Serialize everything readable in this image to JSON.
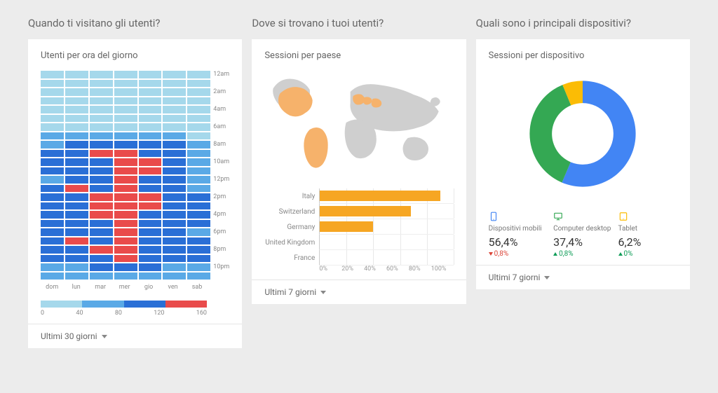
{
  "palette": {
    "heatmap_scale": [
      "#a5d8eb",
      "#5aa9e6",
      "#2a6fd6",
      "#e94b4b"
    ],
    "bar_color": "#f6a623",
    "map_highlight": "#f6b26b",
    "map_neutral": "#cfcfcf",
    "donut_colors": {
      "mobile": "#4285f4",
      "desktop": "#34a853",
      "tablet": "#fbbc05"
    },
    "grid_color": "#e8e8e8",
    "text_muted": "#888888"
  },
  "cards": {
    "heatmap": {
      "section_title": "Quando ti visitano gli utenti?",
      "chart_title": "Utenti per ora del giorno",
      "days": [
        "dom",
        "lun",
        "mar",
        "mer",
        "gio",
        "ven",
        "sab"
      ],
      "hour_labels": [
        "12am",
        "2am",
        "4am",
        "6am",
        "8am",
        "10am",
        "12pm",
        "2pm",
        "4pm",
        "6pm",
        "8pm",
        "10pm"
      ],
      "grid": [
        [
          0,
          0,
          0,
          0,
          0,
          0,
          0
        ],
        [
          0,
          0,
          0,
          0,
          0,
          0,
          0
        ],
        [
          0,
          0,
          0,
          0,
          0,
          0,
          0
        ],
        [
          0,
          0,
          0,
          0,
          0,
          0,
          0
        ],
        [
          0,
          0,
          0,
          0,
          0,
          0,
          0
        ],
        [
          0,
          0,
          0,
          0,
          0,
          0,
          0
        ],
        [
          0,
          0,
          0,
          0,
          0,
          0,
          0
        ],
        [
          1,
          1,
          1,
          1,
          1,
          1,
          0
        ],
        [
          1,
          2,
          2,
          2,
          2,
          2,
          1
        ],
        [
          2,
          2,
          3,
          3,
          2,
          2,
          1
        ],
        [
          2,
          2,
          2,
          3,
          3,
          2,
          1
        ],
        [
          2,
          2,
          2,
          3,
          3,
          2,
          1
        ],
        [
          1,
          2,
          2,
          3,
          2,
          2,
          1
        ],
        [
          2,
          3,
          2,
          3,
          2,
          2,
          1
        ],
        [
          2,
          2,
          3,
          3,
          3,
          2,
          2
        ],
        [
          2,
          2,
          3,
          3,
          3,
          2,
          2
        ],
        [
          2,
          2,
          3,
          3,
          2,
          2,
          2
        ],
        [
          2,
          2,
          2,
          3,
          2,
          2,
          2
        ],
        [
          2,
          2,
          2,
          3,
          2,
          2,
          1
        ],
        [
          2,
          3,
          2,
          3,
          2,
          2,
          2
        ],
        [
          2,
          2,
          3,
          3,
          2,
          2,
          2
        ],
        [
          2,
          2,
          2,
          3,
          2,
          2,
          2
        ],
        [
          1,
          1,
          2,
          2,
          2,
          1,
          1
        ],
        [
          1,
          1,
          1,
          1,
          1,
          1,
          1
        ]
      ],
      "legend_ticks": [
        "0",
        "40",
        "80",
        "120",
        "160"
      ],
      "footer": "Ultimi 30 giorni"
    },
    "geo": {
      "section_title": "Dove si trovano i tuoi utenti?",
      "chart_title": "Sessioni per paese",
      "bars": [
        {
          "label": "Italy",
          "value": 90
        },
        {
          "label": "Switzerland",
          "value": 68
        },
        {
          "label": "Germany",
          "value": 40
        },
        {
          "label": "United Kingdom",
          "value": 0
        },
        {
          "label": "France",
          "value": 0
        }
      ],
      "axis_ticks": [
        "0%",
        "20%",
        "40%",
        "60%",
        "80%",
        "100%"
      ],
      "footer": "Ultimi 7 giorni"
    },
    "devices": {
      "section_title": "Quali sono i principali dispositivi?",
      "chart_title": "Sessioni per dispositivo",
      "donut": {
        "slices": [
          {
            "key": "mobile",
            "value": 56.4
          },
          {
            "key": "desktop",
            "value": 37.4
          },
          {
            "key": "tablet",
            "value": 6.2
          }
        ],
        "inner_radius_pct": 58
      },
      "legend": [
        {
          "key": "mobile",
          "name": "Dispositivi mobili",
          "pct": "56,4%",
          "delta": "0,8%",
          "dir": "down"
        },
        {
          "key": "desktop",
          "name": "Computer desktop",
          "pct": "37,4%",
          "delta": "0,8%",
          "dir": "up"
        },
        {
          "key": "tablet",
          "name": "Tablet",
          "pct": "6,2%",
          "delta": "0%",
          "dir": "up"
        }
      ],
      "footer": "Ultimi 7 giorni"
    }
  }
}
